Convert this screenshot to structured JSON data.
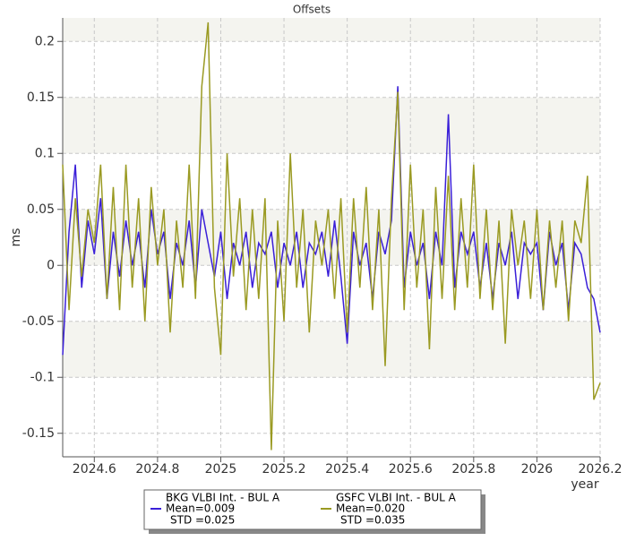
{
  "chart_data": {
    "type": "line",
    "title": "Offsets",
    "xlabel": "year",
    "ylabel": "ms",
    "x": [
      2024.5,
      2024.52,
      2024.54,
      2024.56,
      2024.58,
      2024.6,
      2024.62,
      2024.64,
      2024.66,
      2024.68,
      2024.7,
      2024.72,
      2024.74,
      2024.76,
      2024.78,
      2024.8,
      2024.82,
      2024.84,
      2024.86,
      2024.88,
      2024.9,
      2024.92,
      2024.94,
      2024.96,
      2024.98,
      2025.0,
      2025.02,
      2025.04,
      2025.06,
      2025.08,
      2025.1,
      2025.12,
      2025.14,
      2025.16,
      2025.18,
      2025.2,
      2025.22,
      2025.24,
      2025.26,
      2025.28,
      2025.3,
      2025.32,
      2025.34,
      2025.36,
      2025.38,
      2025.4,
      2025.42,
      2025.44,
      2025.46,
      2025.48,
      2025.5,
      2025.52,
      2025.54,
      2025.56,
      2025.58,
      2025.6,
      2025.62,
      2025.64,
      2025.66,
      2025.68,
      2025.7,
      2025.72,
      2025.74,
      2025.76,
      2025.78,
      2025.8,
      2025.82,
      2025.84,
      2025.86,
      2025.88,
      2025.9,
      2025.92,
      2025.94,
      2025.96,
      2025.98,
      2026.0,
      2026.02,
      2026.04,
      2026.06,
      2026.08,
      2026.1,
      2026.12,
      2026.14,
      2026.16,
      2026.18,
      2026.2
    ],
    "series": [
      {
        "name": "BKG VLBI Int. - BUL A",
        "mean": "Mean=0.009",
        "std": "STD =0.025",
        "color": "#3a1fd8",
        "values": [
          -0.08,
          0.03,
          0.09,
          -0.02,
          0.04,
          0.01,
          0.06,
          -0.03,
          0.03,
          -0.01,
          0.04,
          0.0,
          0.03,
          -0.02,
          0.05,
          0.01,
          0.03,
          -0.03,
          0.02,
          0.0,
          0.04,
          -0.02,
          0.05,
          0.02,
          -0.01,
          0.03,
          -0.03,
          0.02,
          0.0,
          0.03,
          -0.02,
          0.02,
          0.01,
          0.03,
          -0.02,
          0.02,
          0.0,
          0.03,
          -0.02,
          0.02,
          0.01,
          0.03,
          -0.01,
          0.04,
          -0.01,
          -0.07,
          0.03,
          0.0,
          0.02,
          -0.03,
          0.03,
          0.01,
          0.04,
          0.16,
          -0.02,
          0.03,
          0.0,
          0.02,
          -0.03,
          0.03,
          0.0,
          0.135,
          -0.02,
          0.03,
          0.01,
          0.03,
          -0.02,
          0.02,
          -0.03,
          0.02,
          0.0,
          0.03,
          -0.03,
          0.02,
          0.01,
          0.02,
          -0.04,
          0.03,
          0.0,
          0.02,
          -0.04,
          0.02,
          0.01,
          -0.02,
          -0.03,
          -0.06
        ]
      },
      {
        "name": "GSFC VLBI Int. - BUL A",
        "mean": "Mean=0.020",
        "std": "STD =0.035",
        "color": "#9a9a22",
        "values": [
          0.09,
          -0.04,
          0.06,
          -0.01,
          0.05,
          0.02,
          0.09,
          -0.03,
          0.07,
          -0.04,
          0.09,
          -0.02,
          0.06,
          -0.05,
          0.07,
          0.0,
          0.05,
          -0.06,
          0.04,
          -0.02,
          0.09,
          -0.03,
          0.16,
          0.217,
          -0.02,
          -0.08,
          0.1,
          -0.01,
          0.06,
          -0.04,
          0.05,
          -0.03,
          0.06,
          -0.165,
          0.04,
          -0.05,
          0.1,
          -0.02,
          0.05,
          -0.06,
          0.04,
          0.0,
          0.05,
          -0.03,
          0.06,
          -0.06,
          0.06,
          -0.02,
          0.07,
          -0.04,
          0.05,
          -0.09,
          0.06,
          0.155,
          -0.04,
          0.09,
          -0.02,
          0.05,
          -0.075,
          0.07,
          -0.03,
          0.08,
          -0.04,
          0.06,
          -0.02,
          0.09,
          -0.03,
          0.05,
          -0.04,
          0.04,
          -0.07,
          0.05,
          0.0,
          0.04,
          -0.03,
          0.05,
          -0.04,
          0.04,
          -0.02,
          0.04,
          -0.05,
          0.04,
          0.02,
          0.08,
          -0.12,
          -0.105
        ]
      }
    ],
    "xlim": [
      2024.5,
      2026.2
    ],
    "xticks": [
      2024.6,
      2024.8,
      2025,
      2025.2,
      2025.4,
      2025.6,
      2025.8,
      2026,
      2026.2
    ],
    "ylim": [
      -0.171,
      0.221
    ],
    "yticks": [
      -0.15,
      -0.1,
      -0.05,
      0,
      0.05,
      0.1,
      0.15,
      0.2
    ],
    "grid": true
  }
}
